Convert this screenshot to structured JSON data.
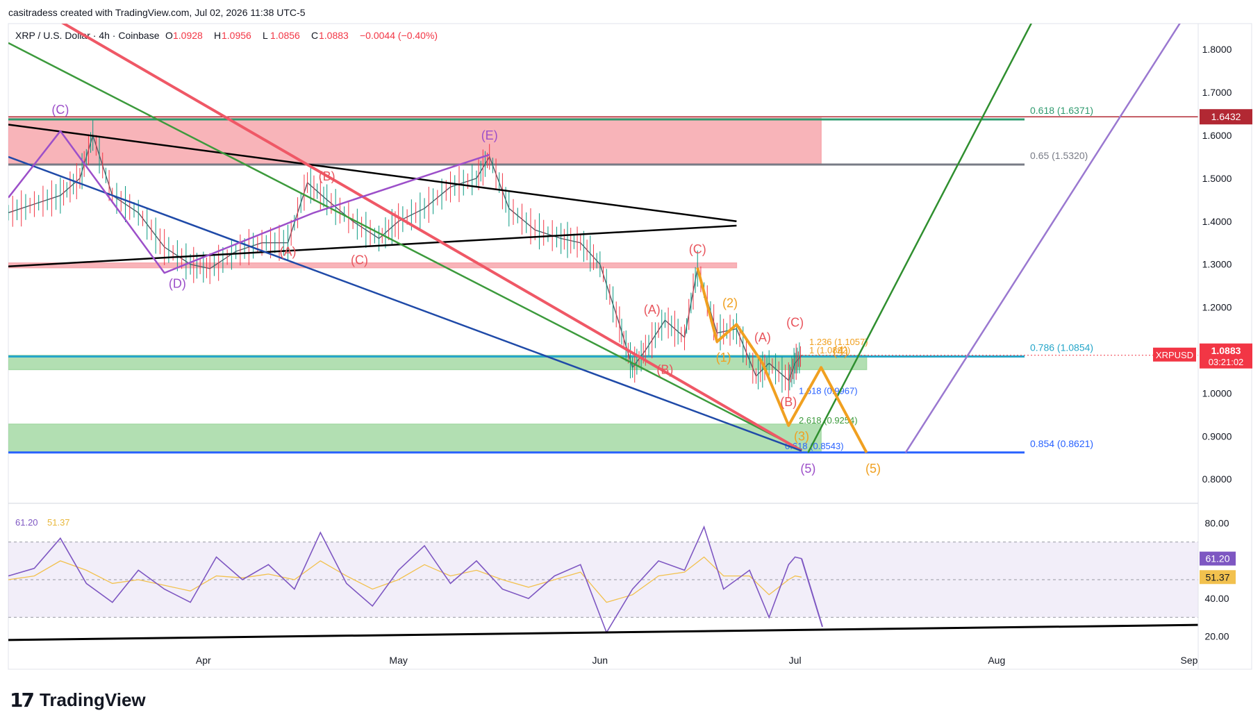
{
  "credit": "casitradess created with TradingView.com, Jul 02, 2026 11:38 UTC-5",
  "brand": "TradingView",
  "brand_icon": "tradingview-logo-icon",
  "chart_data": {
    "type": "line",
    "header": {
      "symbol": "XRP / U.S. Dollar · 4h · Coinbase",
      "ohlc": [
        {
          "k": "O",
          "v": "1.0928"
        },
        {
          "k": "H",
          "v": "1.0956"
        },
        {
          "k": "L",
          "v": "1.0856"
        },
        {
          "k": "C",
          "v": "1.0883"
        }
      ],
      "change": "−0.0044 (−0.40%)"
    },
    "ylim": [
      0.76,
      1.86
    ],
    "y_ticks": [
      "1.8000",
      "1.7000",
      "1.6000",
      "1.5000",
      "1.4000",
      "1.3000",
      "1.2000",
      "1.1000",
      "1.0000",
      "0.9000",
      "0.8000"
    ],
    "x_ticks": [
      {
        "label": "Apr",
        "x": "2026-04-01"
      },
      {
        "label": "May",
        "x": "2026-05-01"
      },
      {
        "label": "Jun",
        "x": "2026-06-01"
      },
      {
        "label": "Jul",
        "x": "2026-07-01"
      },
      {
        "label": "Aug",
        "x": "2026-08-01"
      },
      {
        "label": "Sep",
        "x": "2026-09-01"
      }
    ],
    "xlim": [
      "2026-03-02",
      "2026-09-01"
    ],
    "price_series": {
      "name": "XRPUSD",
      "x": [
        "2026-03-02",
        "2026-03-06",
        "2026-03-10",
        "2026-03-13",
        "2026-03-15",
        "2026-03-18",
        "2026-03-22",
        "2026-03-26",
        "2026-03-30",
        "2026-04-02",
        "2026-04-06",
        "2026-04-10",
        "2026-04-14",
        "2026-04-17",
        "2026-04-20",
        "2026-04-24",
        "2026-04-28",
        "2026-05-01",
        "2026-05-05",
        "2026-05-09",
        "2026-05-13",
        "2026-05-15",
        "2026-05-18",
        "2026-05-22",
        "2026-05-26",
        "2026-05-29",
        "2026-06-01",
        "2026-06-04",
        "2026-06-06",
        "2026-06-08",
        "2026-06-11",
        "2026-06-14",
        "2026-06-16",
        "2026-06-19",
        "2026-06-22",
        "2026-06-25",
        "2026-06-27",
        "2026-06-30",
        "2026-07-01",
        "2026-07-02"
      ],
      "values": [
        1.42,
        1.44,
        1.46,
        1.5,
        1.6,
        1.46,
        1.42,
        1.34,
        1.3,
        1.29,
        1.33,
        1.35,
        1.35,
        1.49,
        1.45,
        1.4,
        1.36,
        1.4,
        1.43,
        1.48,
        1.5,
        1.55,
        1.43,
        1.38,
        1.36,
        1.35,
        1.3,
        1.16,
        1.06,
        1.1,
        1.17,
        1.13,
        1.29,
        1.14,
        1.15,
        1.04,
        1.07,
        1.03,
        1.07,
        1.0883
      ]
    },
    "zones": [
      {
        "name": "supply-zone",
        "from": "2026-03-02",
        "to": "2026-07-05",
        "y1": 1.534,
        "y2": 1.64,
        "color": "#f7a7ad"
      },
      {
        "name": "resistance-band",
        "from": "2026-03-02",
        "to": "2026-06-22",
        "y1": 1.292,
        "y2": 1.303,
        "color": "#f7a7ad"
      },
      {
        "name": "support-zone-upper",
        "from": "2026-03-02",
        "to": "2026-07-12",
        "y1": 1.055,
        "y2": 1.088,
        "color": "#a4d9a5"
      },
      {
        "name": "support-zone-lower",
        "from": "2026-03-02",
        "to": "2026-07-05",
        "y1": 0.864,
        "y2": 0.928,
        "color": "#a4d9a5"
      }
    ],
    "horizontal_levels": [
      {
        "label": "0.618 (1.6371)",
        "y": 1.6371,
        "color": "#2e9a6e"
      },
      {
        "label": "0.65 (1.5320)",
        "y": 1.532,
        "color": "#787b86"
      },
      {
        "label": "0.786 (1.0854)",
        "y": 1.0854,
        "color": "#26a6c9"
      },
      {
        "label": "0.854 (0.8621)",
        "y": 0.8621,
        "color": "#2962ff"
      }
    ],
    "red_level": {
      "y": 1.6432,
      "label": "1.6432",
      "color": "#b22833"
    },
    "ext_labels": [
      {
        "text": "1.236 (1.1057)",
        "color": "#f0a020"
      },
      {
        "text": "1 (1.0892)",
        "color": "#f0a020"
      },
      {
        "text": "1.618 (0.9967)",
        "color": "#2962ff"
      },
      {
        "text": "2.618 (0.9254)",
        "color": "#3c9a3c"
      },
      {
        "text": "0.618 (0.8543)",
        "color": "#2962ff"
      }
    ],
    "trendlines": [
      {
        "name": "black-upper",
        "color": "#000000",
        "pts": [
          [
            "2026-03-02",
            1.625
          ],
          [
            "2026-06-22",
            1.4
          ]
        ]
      },
      {
        "name": "black-lower",
        "color": "#000000",
        "pts": [
          [
            "2026-03-02",
            1.295
          ],
          [
            "2026-06-22",
            1.39
          ]
        ]
      },
      {
        "name": "green-wedge",
        "color": "#3c9a3c",
        "pts": [
          [
            "2026-03-02",
            1.815
          ],
          [
            "2026-07-02",
            0.868
          ]
        ]
      },
      {
        "name": "red-wedge",
        "color": "#ef5866",
        "pts": [
          [
            "2026-03-02",
            1.935
          ],
          [
            "2026-07-02",
            0.866
          ]
        ]
      },
      {
        "name": "blue-wedge",
        "color": "#1f4aa8",
        "pts": [
          [
            "2026-03-02",
            1.55
          ],
          [
            "2026-07-02",
            0.866
          ]
        ]
      },
      {
        "name": "green-channel",
        "color": "#2f8f2f",
        "pts": [
          [
            "2026-07-03",
            0.862
          ],
          [
            "2026-08-07",
            1.88
          ]
        ]
      },
      {
        "name": "purple-channel",
        "color": "#9a78d0",
        "pts": [
          [
            "2026-07-18",
            0.862
          ],
          [
            "2026-08-30",
            1.88
          ]
        ]
      },
      {
        "name": "purple-triangle",
        "color": "#9c4fc9",
        "pts": [
          [
            "2026-03-02",
            1.455
          ],
          [
            "2026-03-10",
            1.61
          ],
          [
            "2026-03-26",
            1.28
          ],
          [
            "2026-04-18",
            1.42
          ],
          [
            "2026-05-15",
            1.555
          ]
        ]
      },
      {
        "name": "orange-projection",
        "color": "#f0a020",
        "pts": [
          [
            "2026-06-16",
            1.292
          ],
          [
            "2026-06-19",
            1.12
          ],
          [
            "2026-06-22",
            1.16
          ],
          [
            "2026-06-26",
            1.07
          ],
          [
            "2026-06-30",
            0.925
          ],
          [
            "2026-07-05",
            1.06
          ],
          [
            "2026-07-12",
            0.862
          ]
        ]
      }
    ],
    "wave_labels": [
      {
        "text": "(C)",
        "x": "2026-03-10",
        "y": 1.65,
        "color": "#9c4fc9"
      },
      {
        "text": "(E)",
        "x": "2026-05-15",
        "y": 1.59,
        "color": "#9c4fc9"
      },
      {
        "text": "(D)",
        "x": "2026-03-28",
        "y": 1.245,
        "color": "#9c4fc9"
      },
      {
        "text": "(B)",
        "x": "2026-04-20",
        "y": 1.495,
        "color": "#e8545c"
      },
      {
        "text": "(A)",
        "x": "2026-04-14",
        "y": 1.32,
        "color": "#e8545c"
      },
      {
        "text": "(C)",
        "x": "2026-04-25",
        "y": 1.3,
        "color": "#e8545c"
      },
      {
        "text": "(C)",
        "x": "2026-06-16",
        "y": 1.325,
        "color": "#e8545c"
      },
      {
        "text": "(A)",
        "x": "2026-06-09",
        "y": 1.185,
        "color": "#e8545c"
      },
      {
        "text": "(B)",
        "x": "2026-06-11",
        "y": 1.045,
        "color": "#e8545c"
      },
      {
        "text": "(2)",
        "x": "2026-06-21",
        "y": 1.2,
        "color": "#f0a020"
      },
      {
        "text": "(1)",
        "x": "2026-06-20",
        "y": 1.073,
        "color": "#f0a020"
      },
      {
        "text": "(A)",
        "x": "2026-06-26",
        "y": 1.12,
        "color": "#e8545c"
      },
      {
        "text": "(C)",
        "x": "2026-07-01",
        "y": 1.155,
        "color": "#e8545c"
      },
      {
        "text": "(B)",
        "x": "2026-06-30",
        "y": 0.97,
        "color": "#e8545c"
      },
      {
        "text": "(4)",
        "x": "2026-07-08",
        "y": 1.088,
        "color": "#f0a020"
      },
      {
        "text": "(3)",
        "x": "2026-07-02",
        "y": 0.89,
        "color": "#f0a020"
      },
      {
        "text": "(5)",
        "x": "2026-07-13",
        "y": 0.815,
        "color": "#f0a020"
      },
      {
        "text": "(5)",
        "x": "2026-07-03",
        "y": 0.815,
        "color": "#9c4fc9"
      }
    ],
    "price_labels": [
      {
        "text": "1.0883",
        "y": 1.0883,
        "bg": "#f23645",
        "fg": "#ffffff"
      },
      {
        "text": "03:21:02",
        "y": 1.0883,
        "bg": "#f23645",
        "fg": "#ffffff"
      },
      {
        "text": "XRPUSD",
        "y": 1.0883,
        "bg": "#f23645",
        "fg": "#ffffff"
      }
    ],
    "rsi": {
      "label": "61.20",
      "ma_label": "51.37",
      "value": 61.2,
      "ma_value": 51.37,
      "ylim": [
        15,
        85
      ],
      "y_ticks": [
        "80.00",
        "60.00",
        "40.00",
        "20.00"
      ],
      "band": [
        30,
        70
      ],
      "x": [
        "2026-03-02",
        "2026-03-06",
        "2026-03-10",
        "2026-03-14",
        "2026-03-18",
        "2026-03-22",
        "2026-03-26",
        "2026-03-30",
        "2026-04-03",
        "2026-04-07",
        "2026-04-11",
        "2026-04-15",
        "2026-04-19",
        "2026-04-23",
        "2026-04-27",
        "2026-05-01",
        "2026-05-05",
        "2026-05-09",
        "2026-05-13",
        "2026-05-17",
        "2026-05-21",
        "2026-05-25",
        "2026-05-29",
        "2026-06-02",
        "2026-06-06",
        "2026-06-10",
        "2026-06-14",
        "2026-06-17",
        "2026-06-20",
        "2026-06-24",
        "2026-06-27",
        "2026-06-30",
        "2026-07-01",
        "2026-07-02"
      ],
      "values": [
        52,
        56,
        72,
        48,
        38,
        55,
        45,
        38,
        62,
        50,
        58,
        45,
        75,
        48,
        36,
        55,
        68,
        48,
        60,
        45,
        40,
        52,
        58,
        22,
        45,
        60,
        55,
        78,
        45,
        55,
        30,
        58,
        62,
        61.2
      ],
      "ma": [
        50,
        52,
        60,
        55,
        48,
        50,
        47,
        44,
        52,
        51,
        53,
        50,
        60,
        52,
        45,
        50,
        58,
        52,
        55,
        50,
        46,
        50,
        54,
        38,
        42,
        52,
        54,
        62,
        52,
        52,
        42,
        50,
        52,
        51.37
      ],
      "projection": {
        "to_x": "2026-07-02",
        "to_y": 25
      },
      "trendline": [
        [
          "2026-03-02",
          18
        ],
        [
          "2026-09-01",
          26
        ]
      ]
    },
    "header_color": "#f23645"
  }
}
